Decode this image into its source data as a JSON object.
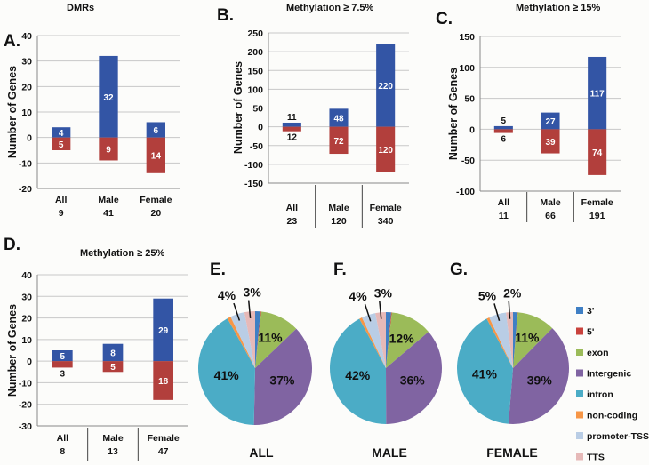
{
  "colors": {
    "positive": "#3355a5",
    "negative": "#b23f3c",
    "grid": "#c8c8c8",
    "axis": "#888888"
  },
  "chart_data": [
    {
      "id": "A",
      "type": "bar",
      "panel": "A.",
      "title": "DMRs",
      "ylabel": "Number of Genes",
      "ylim": [
        -20,
        40
      ],
      "yticks": [
        -20,
        -10,
        0,
        10,
        20,
        30,
        40
      ],
      "categories": [
        "All",
        "Male",
        "Female"
      ],
      "totals": [
        "9",
        "41",
        "20"
      ],
      "separators": false,
      "series": [
        {
          "name": "positive",
          "values": [
            4,
            32,
            6
          ]
        },
        {
          "name": "negative",
          "values": [
            -5,
            -9,
            -14
          ]
        }
      ],
      "labels": {
        "positive": [
          "4",
          "32",
          "6"
        ],
        "negative": [
          "5",
          "9",
          "14"
        ]
      }
    },
    {
      "id": "B",
      "type": "bar",
      "panel": "B.",
      "title": "Methylation ≥ 7.5%",
      "ylabel": "Number of Genes",
      "ylim": [
        -150,
        250
      ],
      "yticks": [
        -150,
        -100,
        -50,
        0,
        50,
        100,
        150,
        200,
        250
      ],
      "categories": [
        "All",
        "Male",
        "Female"
      ],
      "totals": [
        "23",
        "120",
        "340"
      ],
      "separators": true,
      "series": [
        {
          "name": "positive",
          "values": [
            11,
            48,
            220
          ]
        },
        {
          "name": "negative",
          "values": [
            -12,
            -72,
            -120
          ]
        }
      ],
      "labels": {
        "positive": [
          "11",
          "48",
          "220"
        ],
        "negative": [
          "12",
          "72",
          "120"
        ]
      }
    },
    {
      "id": "C",
      "type": "bar",
      "panel": "C.",
      "title": "Methylation ≥ 15%",
      "ylabel": "Number of Genes",
      "ylim": [
        -100,
        150
      ],
      "yticks": [
        -100,
        -50,
        0,
        50,
        100,
        150
      ],
      "categories": [
        "All",
        "Male",
        "Female"
      ],
      "totals": [
        "11",
        "66",
        "191"
      ],
      "separators": true,
      "series": [
        {
          "name": "positive",
          "values": [
            5,
            27,
            117
          ]
        },
        {
          "name": "negative",
          "values": [
            -6,
            -39,
            -74
          ]
        }
      ],
      "labels": {
        "positive": [
          "5",
          "27",
          "117"
        ],
        "negative": [
          "6",
          "39",
          "74"
        ]
      }
    },
    {
      "id": "D",
      "type": "bar",
      "panel": "D.",
      "title": "Methylation ≥ 25%",
      "ylabel": "Number of Genes",
      "ylim": [
        -30,
        40
      ],
      "yticks": [
        -30,
        -20,
        -10,
        0,
        10,
        20,
        30,
        40
      ],
      "categories": [
        "All",
        "Male",
        "Female"
      ],
      "totals": [
        "8",
        "13",
        "47"
      ],
      "separators": true,
      "series": [
        {
          "name": "positive",
          "values": [
            5,
            8,
            29
          ]
        },
        {
          "name": "negative",
          "values": [
            -3,
            -5,
            -18
          ]
        }
      ],
      "labels": {
        "positive": [
          "5",
          "8",
          "29"
        ],
        "negative": [
          "3",
          "5",
          "18"
        ]
      }
    },
    {
      "id": "E",
      "type": "pie",
      "panel": "E.",
      "title": "ALL",
      "slices": [
        {
          "label": "3'",
          "value": 1.5
        },
        {
          "label": "5'",
          "value": 0.2
        },
        {
          "label": "exon",
          "value": 11,
          "text": "11%"
        },
        {
          "label": "Intergenic",
          "value": 37,
          "text": "37%"
        },
        {
          "label": "intron",
          "value": 41,
          "text": "41%"
        },
        {
          "label": "non-coding",
          "value": 1
        },
        {
          "label": "promoter-TSS",
          "value": 4,
          "text": "4%"
        },
        {
          "label": "TTS",
          "value": 3,
          "text": "3%"
        }
      ]
    },
    {
      "id": "F",
      "type": "pie",
      "panel": "F.",
      "title": "MALE",
      "slices": [
        {
          "label": "3'",
          "value": 1.5
        },
        {
          "label": "5'",
          "value": 0.2
        },
        {
          "label": "exon",
          "value": 12,
          "text": "12%"
        },
        {
          "label": "Intergenic",
          "value": 36,
          "text": "36%"
        },
        {
          "label": "intron",
          "value": 42,
          "text": "42%"
        },
        {
          "label": "non-coding",
          "value": 0.8
        },
        {
          "label": "promoter-TSS",
          "value": 4,
          "text": "4%"
        },
        {
          "label": "TTS",
          "value": 3,
          "text": "3%"
        }
      ]
    },
    {
      "id": "G",
      "type": "pie",
      "panel": "G.",
      "title": "FEMALE",
      "slices": [
        {
          "label": "3'",
          "value": 1.3
        },
        {
          "label": "5'",
          "value": 0.1
        },
        {
          "label": "exon",
          "value": 11,
          "text": "11%"
        },
        {
          "label": "Intergenic",
          "value": 39,
          "text": "39%"
        },
        {
          "label": "intron",
          "value": 41,
          "text": "41%"
        },
        {
          "label": "non-coding",
          "value": 0.8
        },
        {
          "label": "promoter-TSS",
          "value": 5,
          "text": "5%"
        },
        {
          "label": "TTS",
          "value": 2,
          "text": "2%"
        }
      ]
    }
  ],
  "legend": [
    {
      "label": "3'",
      "color": "#3f7fc4"
    },
    {
      "label": "5'",
      "color": "#c9423c"
    },
    {
      "label": "exon",
      "color": "#9bbb59"
    },
    {
      "label": "Intergenic",
      "color": "#8064a2"
    },
    {
      "label": "intron",
      "color": "#4bacc6"
    },
    {
      "label": "non-coding",
      "color": "#f79646"
    },
    {
      "label": "promoter-TSS",
      "color": "#b9cde5"
    },
    {
      "label": "TTS",
      "color": "#e6b9b8"
    }
  ]
}
